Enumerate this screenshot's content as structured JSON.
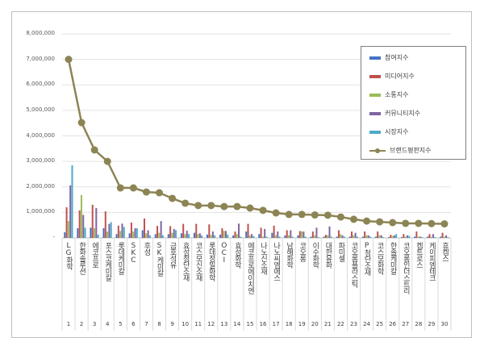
{
  "chart_data": {
    "type": "bar",
    "title": "",
    "xlabel": "",
    "ylabel": "",
    "ylim": [
      0,
      8000000
    ],
    "yticks": [
      "-",
      "1,000,000",
      "2,000,000",
      "3,000,000",
      "4,000,000",
      "5,000,000",
      "6,000,000",
      "7,000,000",
      "8,000,000"
    ],
    "grid": true,
    "legend_position": "top-right",
    "ranks": [
      "1",
      "2",
      "3",
      "4",
      "5",
      "6",
      "7",
      "8",
      "9",
      "10",
      "11",
      "12",
      "13",
      "14",
      "15",
      "16",
      "17",
      "18",
      "19",
      "20",
      "21",
      "22",
      "23",
      "24",
      "25",
      "26",
      "27",
      "28",
      "29",
      "30"
    ],
    "categories": [
      "LG화학",
      "한화솔루션",
      "에코프로",
      "포스코케미칼",
      "롯데케미칼",
      "SKC",
      "후성",
      "SK케미칼",
      "금호석유",
      "효성첨단소재",
      "코스모신소재",
      "롯데정밀화학",
      "OCI",
      "효성화학",
      "에코프로에이치엔",
      "나노신소재",
      "나노씨엠에스",
      "남해화학",
      "코오롱",
      "이수화학",
      "대한유화",
      "파미셀",
      "코오롱플라스틱",
      "P청단소재",
      "코스모화학",
      "한솔케미칼",
      "코오롱인더스트리",
      "켐트로스",
      "케이피엠테크",
      "휴켐스"
    ],
    "series": [
      {
        "name": "참여지수",
        "type": "bar",
        "color": "#4472c4",
        "values": [
          220000,
          380000,
          400000,
          380000,
          150000,
          180000,
          300000,
          150000,
          150000,
          180000,
          200000,
          130000,
          130000,
          100000,
          250000,
          150000,
          200000,
          100000,
          100000,
          50000,
          50000,
          50000,
          50000,
          50000,
          50000,
          30000,
          30000,
          50000,
          50000,
          50000
        ]
      },
      {
        "name": "미디어지수",
        "type": "bar",
        "color": "#c0504d",
        "values": [
          1200000,
          1080000,
          1300000,
          1040000,
          480000,
          600000,
          760000,
          470000,
          460000,
          550000,
          550000,
          530000,
          380000,
          250000,
          550000,
          400000,
          480000,
          300000,
          270000,
          250000,
          120000,
          300000,
          250000,
          250000,
          250000,
          120000,
          150000,
          250000,
          150000,
          200000
        ]
      },
      {
        "name": "소통지수",
        "type": "bar",
        "color": "#9bbb59",
        "values": [
          660000,
          1680000,
          380000,
          250000,
          270000,
          250000,
          180000,
          200000,
          200000,
          150000,
          150000,
          120000,
          280000,
          150000,
          100000,
          50000,
          100000,
          100000,
          250000,
          100000,
          100000,
          150000,
          100000,
          100000,
          100000,
          80000,
          50000,
          50000,
          50000,
          50000
        ]
      },
      {
        "name": "커뮤니티지수",
        "type": "bar",
        "color": "#8064a2",
        "values": [
          2060000,
          900000,
          1170000,
          550000,
          560000,
          380000,
          300000,
          660000,
          350000,
          280000,
          180000,
          250000,
          270000,
          560000,
          150000,
          350000,
          250000,
          300000,
          250000,
          400000,
          450000,
          100000,
          200000,
          100000,
          100000,
          100000,
          100000,
          50000,
          150000,
          100000
        ]
      },
      {
        "name": "시장지수",
        "type": "bar",
        "color": "#4bacc6",
        "values": [
          2850000,
          400000,
          130000,
          620000,
          430000,
          380000,
          100000,
          100000,
          300000,
          150000,
          100000,
          100000,
          130000,
          50000,
          70000,
          50000,
          50000,
          50000,
          50000,
          30000,
          50000,
          50000,
          50000,
          50000,
          30000,
          150000,
          80000,
          30000,
          30000,
          30000
        ]
      },
      {
        "name": "브랜드평판지수",
        "type": "line",
        "color": "#8c8454",
        "values": [
          7000000,
          4520000,
          3450000,
          3000000,
          1960000,
          1960000,
          1800000,
          1770000,
          1550000,
          1360000,
          1270000,
          1270000,
          1230000,
          1230000,
          1170000,
          1080000,
          980000,
          920000,
          920000,
          900000,
          890000,
          820000,
          730000,
          660000,
          630000,
          600000,
          570000,
          570000,
          560000,
          550000
        ]
      }
    ]
  }
}
